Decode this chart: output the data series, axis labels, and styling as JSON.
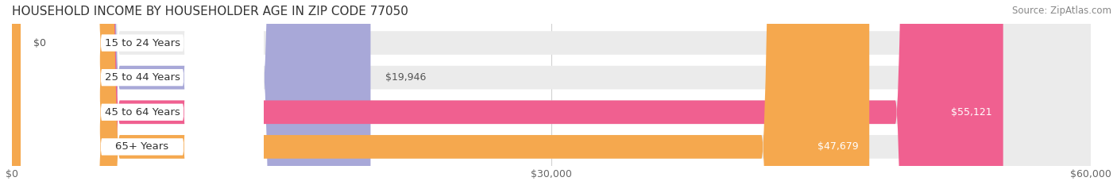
{
  "title": "HOUSEHOLD INCOME BY HOUSEHOLDER AGE IN ZIP CODE 77050",
  "source": "Source: ZipAtlas.com",
  "categories": [
    "15 to 24 Years",
    "25 to 44 Years",
    "45 to 64 Years",
    "65+ Years"
  ],
  "values": [
    0,
    19946,
    55121,
    47679
  ],
  "bar_colors": [
    "#5ecfcc",
    "#a8a8d8",
    "#f06090",
    "#f5a84e"
  ],
  "value_labels": [
    "$0",
    "$19,946",
    "$55,121",
    "$47,679"
  ],
  "value_label_inside": [
    false,
    false,
    true,
    true
  ],
  "xlim": [
    0,
    60000
  ],
  "xticks": [
    0,
    30000,
    60000
  ],
  "xtick_labels": [
    "$0",
    "$30,000",
    "$60,000"
  ],
  "background_color": "#ffffff",
  "bar_background_color": "#ebebeb",
  "title_fontsize": 11,
  "source_fontsize": 8.5,
  "label_fontsize": 9.5,
  "value_fontsize": 9
}
